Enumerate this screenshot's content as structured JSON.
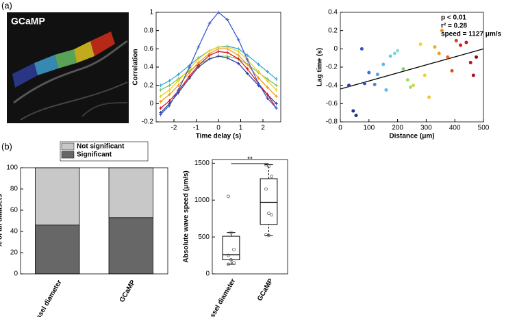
{
  "panels": [
    "(a)",
    "(b)"
  ],
  "image": {
    "label": "GCaMP"
  },
  "chart_data": [
    {
      "type": "line",
      "xlabel": "Time delay (s)",
      "ylabel": "Correlation",
      "x": [
        -2.6,
        -2.2,
        -1.8,
        -1.3,
        -0.9,
        -0.4,
        0,
        0.4,
        0.9,
        1.3,
        1.8,
        2.2,
        2.6
      ],
      "xlim": [
        -2.8,
        2.8
      ],
      "xticks": [
        -2,
        -1,
        0,
        1,
        2
      ],
      "ylim": [
        -0.2,
        1
      ],
      "yticks": [
        -0.2,
        0,
        0.2,
        0.4,
        0.6,
        0.8,
        1
      ],
      "series": [
        {
          "color": "#3aa8d8",
          "values": [
            0.2,
            0.25,
            0.32,
            0.42,
            0.5,
            0.58,
            0.62,
            0.63,
            0.6,
            0.53,
            0.43,
            0.35,
            0.27
          ]
        },
        {
          "color": "#7cc46a",
          "values": [
            0.15,
            0.2,
            0.27,
            0.36,
            0.43,
            0.49,
            0.52,
            0.52,
            0.49,
            0.43,
            0.34,
            0.27,
            0.2
          ]
        },
        {
          "color": "#e8d21a",
          "values": [
            0.08,
            0.15,
            0.25,
            0.38,
            0.49,
            0.58,
            0.62,
            0.62,
            0.57,
            0.48,
            0.35,
            0.25,
            0.15
          ]
        },
        {
          "color": "#2b3f9e",
          "values": [
            -0.1,
            0.0,
            0.12,
            0.28,
            0.4,
            0.49,
            0.52,
            0.5,
            0.44,
            0.33,
            0.2,
            0.1,
            0.0
          ]
        },
        {
          "color": "#f39a1e",
          "values": [
            0.02,
            0.1,
            0.2,
            0.34,
            0.45,
            0.55,
            0.6,
            0.6,
            0.53,
            0.43,
            0.28,
            0.18,
            0.08
          ]
        },
        {
          "color": "#d7191c",
          "values": [
            -0.05,
            0.03,
            0.14,
            0.3,
            0.42,
            0.53,
            0.57,
            0.56,
            0.49,
            0.38,
            0.22,
            0.1,
            -0.05
          ]
        },
        {
          "color": "#3a58c8",
          "values": [
            -0.12,
            -0.02,
            0.15,
            0.4,
            0.62,
            0.88,
            1.0,
            0.92,
            0.7,
            0.48,
            0.22,
            0.06,
            -0.05
          ]
        }
      ]
    },
    {
      "type": "scatter",
      "xlabel": "Distance (μm)",
      "ylabel": "Lag time (s)",
      "annotations": [
        "p < 0.01",
        "r² = 0.28",
        "speed = 1127 μm/s"
      ],
      "xlim": [
        0,
        500
      ],
      "xticks": [
        0,
        100,
        200,
        300,
        400,
        500
      ],
      "ylim": [
        -0.8,
        0.4
      ],
      "yticks": [
        -0.8,
        -0.6,
        -0.4,
        -0.2,
        0,
        0.2,
        0.4
      ],
      "x": [
        30,
        45,
        55,
        75,
        85,
        100,
        120,
        130,
        150,
        160,
        175,
        190,
        200,
        220,
        235,
        245,
        255,
        280,
        295,
        310,
        330,
        345,
        355,
        375,
        390,
        405,
        420,
        440,
        455,
        465,
        475
      ],
      "values": [
        -0.4,
        -0.68,
        -0.73,
        0.0,
        -0.38,
        -0.26,
        -0.39,
        -0.28,
        -0.17,
        -0.45,
        -0.08,
        -0.05,
        -0.02,
        -0.22,
        -0.34,
        -0.42,
        -0.4,
        0.05,
        -0.29,
        -0.53,
        0.02,
        -0.05,
        0.2,
        -0.09,
        -0.24,
        0.09,
        0.04,
        0.07,
        -0.15,
        -0.29,
        -0.09
      ],
      "colors": [
        "#2b3f9e",
        "#22308a",
        "#22308a",
        "#3552c4",
        "#3552c4",
        "#3f6fcf",
        "#4a86d4",
        "#5aa2da",
        "#52c0e6",
        "#52c0e6",
        "#66cfe0",
        "#7fd6d8",
        "#8fdcd0",
        "#8ccf7a",
        "#a8d870",
        "#b2d85e",
        "#c3dc4c",
        "#f0d820",
        "#f2d02a",
        "#f5c530",
        "#f4a828",
        "#f39a1e",
        "#f08a1a",
        "#ec6a1a",
        "#e5501c",
        "#e03a20",
        "#d7191c",
        "#cc1420",
        "#b81420",
        "#a51018",
        "#8c0c14"
      ],
      "fit": {
        "x": [
          0,
          500
        ],
        "values": [
          -0.44,
          0.0
        ],
        "color": "#000000"
      }
    },
    {
      "type": "stacked-bar",
      "ylabel": "% of all datasets",
      "categories": [
        "Vessel diameter",
        "GCaMP"
      ],
      "ylim": [
        0,
        100
      ],
      "yticks": [
        0,
        20,
        40,
        60,
        80,
        100
      ],
      "series": [
        {
          "name": "Significant",
          "color": "#676767",
          "values": [
            46,
            53
          ]
        },
        {
          "name": "Not significant",
          "color": "#c8c8c8",
          "values": [
            54,
            47
          ]
        }
      ]
    },
    {
      "type": "box",
      "ylabel": "Absolute wave speed (μm/s)",
      "significance": "**",
      "categories": [
        "Vessel diameter",
        "GCaMP"
      ],
      "ylim": [
        0,
        1550
      ],
      "yticks": [
        0,
        500,
        1000,
        1500
      ],
      "boxes": [
        {
          "whisker_low": 130,
          "q1": 190,
          "median": 260,
          "q3": 510,
          "whisker_high": 560,
          "points": [
            1050,
            560,
            330,
            250,
            190,
            150,
            130
          ]
        },
        {
          "whisker_low": 520,
          "q1": 670,
          "median": 970,
          "q3": 1290,
          "whisker_high": 1480,
          "points": [
            1480,
            1460,
            1320,
            1150,
            820,
            800,
            530,
            520
          ]
        }
      ]
    }
  ]
}
